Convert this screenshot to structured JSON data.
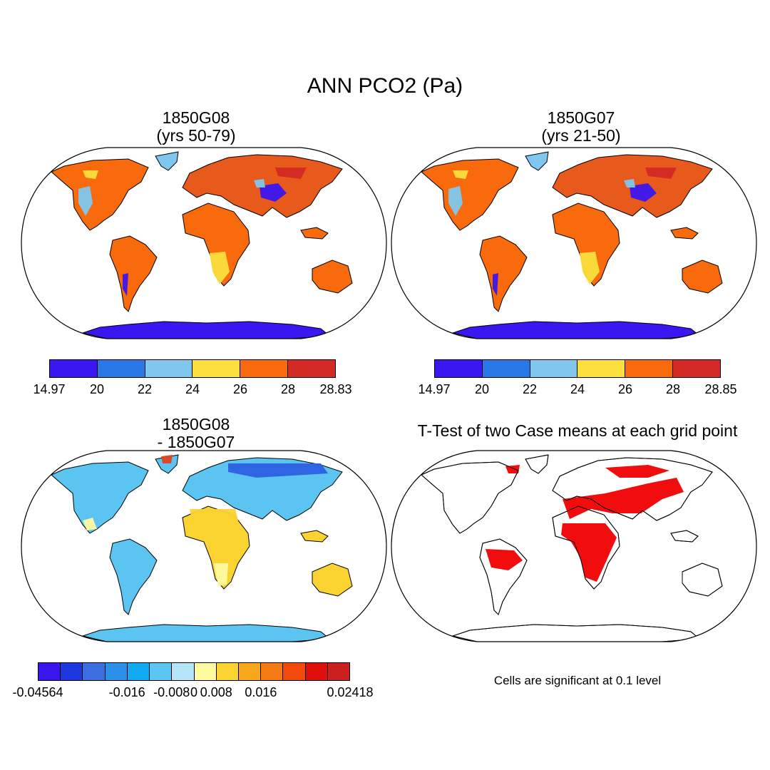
{
  "title": "ANN PCO2 (Pa)",
  "panels": [
    {
      "id": "p1",
      "title_line1": "1850G08",
      "title_line2": "(yrs 50-79)",
      "colorbar": {
        "colors": [
          "#3a17f0",
          "#2a78e8",
          "#7fc7ee",
          "#fbdf3c",
          "#f86a0c",
          "#d32a26"
        ],
        "labels": [
          "14.97",
          "20",
          "22",
          "24",
          "26",
          "28",
          "28.83"
        ]
      }
    },
    {
      "id": "p2",
      "title_line1": "1850G07",
      "title_line2": "(yrs 21-50)",
      "colorbar": {
        "colors": [
          "#3a17f0",
          "#2a78e8",
          "#7fc7ee",
          "#fbdf3c",
          "#f86a0c",
          "#d32a26"
        ],
        "labels": [
          "14.97",
          "20",
          "22",
          "24",
          "26",
          "28",
          "28.85"
        ]
      }
    },
    {
      "id": "p3",
      "title_line1": "1850G08",
      "title_line2": "- 1850G07",
      "colorbar": {
        "colors": [
          "#3b15ee",
          "#1d36de",
          "#3b6fe0",
          "#2c8fe8",
          "#10aaf0",
          "#5cc4f0",
          "#b5e3f7",
          "#fffaa0",
          "#fbd331",
          "#f6a81a",
          "#f57a14",
          "#f34a0c",
          "#e10f0c",
          "#c9211f"
        ],
        "labels": [
          "-0.04564",
          "-0.016",
          "-0.008",
          "0",
          "0.008",
          "0.016",
          "0.02418"
        ]
      }
    },
    {
      "id": "p4",
      "title_line1": "T-Test of two Case means at each grid point",
      "note": "Cells are significant at 0.1 level",
      "sig_color": "#f00000"
    }
  ]
}
